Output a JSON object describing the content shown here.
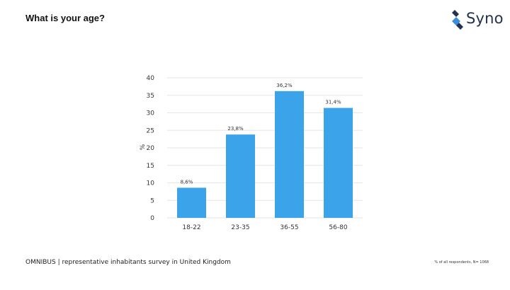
{
  "header": {
    "title": "What is your age?",
    "logo_text": "Syno"
  },
  "footer": {
    "survey_label": "OMNIBUS | representative inhabitants survey in United Kingdom",
    "base_note": "% of all respondents, N= 1068"
  },
  "colors": {
    "bar": "#3aa3ea",
    "grid": "#e6e6e6",
    "brand_navy": "#22324f",
    "brand_blue": "#3a8fdc"
  },
  "chart_data": {
    "type": "bar",
    "title": "",
    "xlabel": "",
    "ylabel": "%",
    "categories": [
      "18-22",
      "23-35",
      "36-55",
      "56-80"
    ],
    "values": [
      8.6,
      23.8,
      36.2,
      31.4
    ],
    "data_labels": [
      "8,6%",
      "23,8%",
      "36,2%",
      "31,4%"
    ],
    "ylim": [
      0,
      40
    ],
    "yticks": [
      0,
      5,
      10,
      15,
      20,
      25,
      30,
      35,
      40
    ],
    "grid": true,
    "legend": "none"
  }
}
